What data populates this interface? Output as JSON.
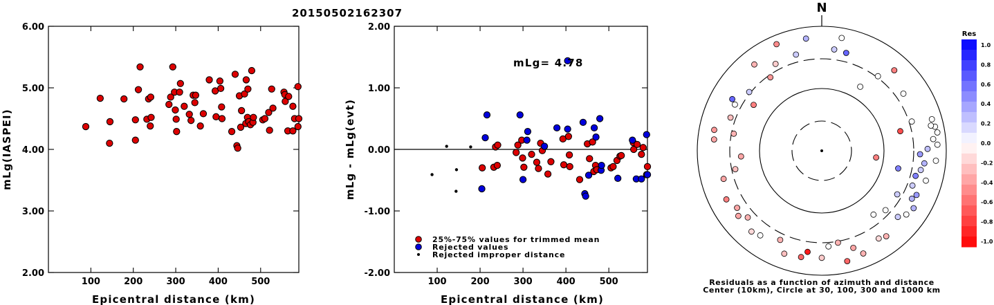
{
  "title": "20150502162307",
  "chart_data": [
    {
      "type": "scatter",
      "xlabel": "Epicentral distance (km)",
      "ylabel": "mLg(IASPEI)",
      "xlim": [
        0,
        590
      ],
      "ylim": [
        2.0,
        6.0
      ],
      "xticks": [
        100,
        200,
        300,
        400,
        500
      ],
      "yticks": [
        "2.00",
        "3.00",
        "4.00",
        "5.00",
        "6.00"
      ],
      "series": [
        {
          "marker": "red-circle",
          "color": "#dd0000",
          "points": [
            [
              88,
              4.37
            ],
            [
              122,
              4.83
            ],
            [
              145,
              4.45
            ],
            [
              144,
              4.1
            ],
            [
              178,
              4.82
            ],
            [
              205,
              4.48
            ],
            [
              205,
              4.15
            ],
            [
              212,
              4.97
            ],
            [
              216,
              5.34
            ],
            [
              232,
              4.49
            ],
            [
              236,
              4.82
            ],
            [
              240,
              4.38
            ],
            [
              241,
              4.85
            ],
            [
              242,
              4.52
            ],
            [
              284,
              4.73
            ],
            [
              288,
              4.85
            ],
            [
              293,
              5.34
            ],
            [
              297,
              4.93
            ],
            [
              299,
              4.64
            ],
            [
              301,
              4.49
            ],
            [
              302,
              4.29
            ],
            [
              309,
              4.93
            ],
            [
              311,
              5.07
            ],
            [
              320,
              4.7
            ],
            [
              332,
              4.57
            ],
            [
              336,
              4.47
            ],
            [
              341,
              4.88
            ],
            [
              345,
              4.76
            ],
            [
              347,
              4.88
            ],
            [
              358,
              4.38
            ],
            [
              365,
              4.58
            ],
            [
              379,
              5.13
            ],
            [
              393,
              4.95
            ],
            [
              395,
              4.53
            ],
            [
              404,
              5.11
            ],
            [
              406,
              4.99
            ],
            [
              408,
              4.69
            ],
            [
              409,
              4.5
            ],
            [
              432,
              4.29
            ],
            [
              440,
              5.22
            ],
            [
              444,
              4.06
            ],
            [
              446,
              4.02
            ],
            [
              450,
              4.87
            ],
            [
              453,
              4.36
            ],
            [
              455,
              4.63
            ],
            [
              462,
              4.9
            ],
            [
              465,
              4.42
            ],
            [
              466,
              5.13
            ],
            [
              469,
              4.52
            ],
            [
              470,
              4.98
            ],
            [
              472,
              4.45
            ],
            [
              476,
              4.4
            ],
            [
              479,
              5.28
            ],
            [
              482,
              4.44
            ],
            [
              483,
              4.52
            ],
            [
              505,
              4.48
            ],
            [
              510,
              4.5
            ],
            [
              519,
              4.6
            ],
            [
              521,
              4.31
            ],
            [
              526,
              4.98
            ],
            [
              529,
              4.67
            ],
            [
              555,
              4.93
            ],
            [
              557,
              4.89
            ],
            [
              558,
              4.78
            ],
            [
              564,
              4.3
            ],
            [
              566,
              4.86
            ],
            [
              576,
              4.3
            ],
            [
              576,
              4.7
            ],
            [
              580,
              4.5
            ],
            [
              588,
              5.02
            ],
            [
              588,
              4.37
            ],
            [
              590,
              4.5
            ]
          ]
        }
      ]
    },
    {
      "type": "scatter",
      "xlabel": "Epicentral distance (km)",
      "ylabel": "mLg - mLg(evt)",
      "xlim": [
        0,
        590
      ],
      "ylim": [
        -2.0,
        2.0
      ],
      "xticks": [
        100,
        200,
        300,
        400,
        500
      ],
      "yticks": [
        "-2.00",
        "-1.00",
        "0.00",
        "1.00",
        "2.00"
      ],
      "annotation": "mLg= 4.78",
      "reference_line": 0.0,
      "legend": [
        {
          "marker": "red-circle",
          "label": "25%-75% values for trimmed mean"
        },
        {
          "marker": "blue-circle",
          "label": "Rejected values"
        },
        {
          "marker": "black-dot",
          "label": "Rejected improper distance"
        }
      ],
      "series": [
        {
          "name": "25%-75% values for trimmed mean",
          "marker": "red-circle",
          "color": "#dd0000",
          "points": [
            [
              205,
              -0.3
            ],
            [
              232,
              -0.29
            ],
            [
              236,
              0.04
            ],
            [
              240,
              -0.26
            ],
            [
              241,
              0.07
            ],
            [
              284,
              -0.05
            ],
            [
              288,
              0.07
            ],
            [
              297,
              0.15
            ],
            [
              299,
              -0.14
            ],
            [
              302,
              -0.29
            ],
            [
              320,
              -0.08
            ],
            [
              332,
              -0.21
            ],
            [
              336,
              -0.31
            ],
            [
              341,
              0.1
            ],
            [
              345,
              -0.02
            ],
            [
              358,
              -0.4
            ],
            [
              365,
              -0.2
            ],
            [
              393,
              0.17
            ],
            [
              395,
              -0.25
            ],
            [
              406,
              0.21
            ],
            [
              408,
              -0.09
            ],
            [
              409,
              -0.28
            ],
            [
              432,
              -0.49
            ],
            [
              450,
              0.09
            ],
            [
              455,
              -0.15
            ],
            [
              462,
              0.12
            ],
            [
              465,
              -0.36
            ],
            [
              469,
              -0.26
            ],
            [
              472,
              -0.33
            ],
            [
              505,
              -0.3
            ],
            [
              510,
              -0.28
            ],
            [
              519,
              -0.18
            ],
            [
              526,
              -0.11
            ],
            [
              529,
              -0.1
            ],
            [
              557,
              0.11
            ],
            [
              558,
              0.0
            ],
            [
              566,
              0.08
            ],
            [
              576,
              -0.08
            ],
            [
              580,
              0.03
            ],
            [
              588,
              -0.41
            ],
            [
              590,
              -0.28
            ]
          ]
        },
        {
          "name": "Rejected values",
          "marker": "blue-circle",
          "color": "#0000dd",
          "points": [
            [
              204,
              -0.64
            ],
            [
              212,
              0.19
            ],
            [
              216,
              0.56
            ],
            [
              293,
              0.56
            ],
            [
              300,
              -0.49
            ],
            [
              309,
              0.15
            ],
            [
              311,
              0.29
            ],
            [
              350,
              0.05
            ],
            [
              379,
              0.35
            ],
            [
              404,
              1.44
            ],
            [
              404,
              0.33
            ],
            [
              440,
              0.44
            ],
            [
              444,
              -0.72
            ],
            [
              446,
              -0.76
            ],
            [
              453,
              -0.42
            ],
            [
              466,
              0.35
            ],
            [
              470,
              0.2
            ],
            [
              479,
              0.5
            ],
            [
              482,
              -0.34
            ],
            [
              483,
              -0.26
            ],
            [
              521,
              -0.47
            ],
            [
              555,
              0.15
            ],
            [
              564,
              -0.48
            ],
            [
              576,
              -0.48
            ],
            [
              588,
              0.24
            ],
            [
              590,
              -0.41
            ]
          ]
        },
        {
          "name": "Rejected improper distance",
          "marker": "black-dot",
          "color": "#000000",
          "points": [
            [
              88,
              -0.41
            ],
            [
              122,
              0.05
            ],
            [
              144,
              -0.68
            ],
            [
              145,
              -0.33
            ],
            [
              178,
              0.04
            ]
          ]
        }
      ]
    },
    {
      "type": "polar-scatter",
      "north_label": "N",
      "caption_line1": "Residuals as a function of azimuth and distance",
      "caption_line2": "Center (10km), Circle at 30, 100, 300 and 1000 km",
      "rings_km": [
        30,
        100,
        300,
        1000
      ],
      "colorbar": {
        "title": "Res",
        "ticks": [
          "1.0",
          "0.8",
          "0.6",
          "0.4",
          "0.2",
          "0.0",
          "-0.2",
          "-0.4",
          "-0.6",
          "-0.8",
          "-1.0"
        ],
        "positive_color": "#0000ff",
        "negative_color": "#ff0000"
      },
      "stations": [
        {
          "az": 352,
          "r": 0.91,
          "res": 0.3
        },
        {
          "az": 337,
          "r": 0.93,
          "res": -0.45
        },
        {
          "az": 345,
          "r": 0.8,
          "res": 0.2
        },
        {
          "az": 332,
          "r": 0.79,
          "res": -0.2
        },
        {
          "az": 325,
          "r": 0.72,
          "res": -0.4
        },
        {
          "az": 322,
          "r": 0.88,
          "res": -0.3
        },
        {
          "az": 7,
          "r": 0.82,
          "res": 0.2
        },
        {
          "az": 14,
          "r": 0.81,
          "res": 0.6
        },
        {
          "az": 10,
          "r": 0.92,
          "res": 0.0
        },
        {
          "az": 31,
          "r": 0.6,
          "res": 0.0
        },
        {
          "az": 37,
          "r": 0.75,
          "res": 0.0
        },
        {
          "az": 42,
          "r": 0.87,
          "res": -0.5
        },
        {
          "az": 300,
          "r": 0.83,
          "res": 0.6
        },
        {
          "az": 298,
          "r": 0.79,
          "res": 0.0
        },
        {
          "az": 304,
          "r": 0.66,
          "res": -0.5
        },
        {
          "az": 290,
          "r": 0.78,
          "res": -0.25
        },
        {
          "az": 309,
          "r": 0.75,
          "res": 0.2
        },
        {
          "az": 281,
          "r": 0.88,
          "res": -0.4
        },
        {
          "az": 276,
          "r": 0.87,
          "res": -0.35
        },
        {
          "az": 281,
          "r": 0.72,
          "res": -0.3
        },
        {
          "az": 266,
          "r": 0.65,
          "res": -0.35
        },
        {
          "az": 258,
          "r": 0.71,
          "res": -0.25
        },
        {
          "az": 254,
          "r": 0.82,
          "res": -0.35
        },
        {
          "az": 243,
          "r": 0.86,
          "res": -0.5
        },
        {
          "az": 236,
          "r": 0.82,
          "res": -0.35
        },
        {
          "az": 232,
          "r": 0.85,
          "res": -0.35
        },
        {
          "az": 228,
          "r": 0.8,
          "res": -0.3
        },
        {
          "az": 221,
          "r": 0.86,
          "res": -0.15
        },
        {
          "az": 216,
          "r": 0.84,
          "res": 0.0
        },
        {
          "az": 205,
          "r": 0.79,
          "res": -0.3
        },
        {
          "az": 200,
          "r": 0.88,
          "res": -0.25
        },
        {
          "az": 191,
          "r": 0.87,
          "res": -0.6
        },
        {
          "az": 188,
          "r": 0.82,
          "res": -0.9
        },
        {
          "az": 180,
          "r": 0.86,
          "res": -0.2
        },
        {
          "az": 176,
          "r": 0.77,
          "res": 0.0
        },
        {
          "az": 170,
          "r": 0.75,
          "res": -0.3
        },
        {
          "az": 167,
          "r": 0.91,
          "res": -0.6
        },
        {
          "az": 162,
          "r": 0.82,
          "res": -0.35
        },
        {
          "az": 158,
          "r": 0.89,
          "res": -0.3
        },
        {
          "az": 147,
          "r": 0.84,
          "res": -0.15
        },
        {
          "az": 143,
          "r": 0.86,
          "res": -0.3
        },
        {
          "az": 141,
          "r": 0.66,
          "res": 0.0
        },
        {
          "az": 133,
          "r": 0.7,
          "res": 0.0
        },
        {
          "az": 131,
          "r": 0.81,
          "res": 0.2
        },
        {
          "az": 127,
          "r": 0.85,
          "res": 0.0
        },
        {
          "az": 122,
          "r": 0.87,
          "res": 0.3
        },
        {
          "az": 120,
          "r": 0.7,
          "res": 0.2
        },
        {
          "az": 118,
          "r": 0.82,
          "res": 0.3
        },
        {
          "az": 115,
          "r": 0.84,
          "res": 0.4
        },
        {
          "az": 111,
          "r": 0.78,
          "res": 0.2
        },
        {
          "az": 106,
          "r": 0.87,
          "res": 0.0
        },
        {
          "az": 105,
          "r": 0.78,
          "res": 0.5
        },
        {
          "az": 103,
          "r": 0.63,
          "res": 0.5
        },
        {
          "az": 101,
          "r": 0.81,
          "res": 0.2
        },
        {
          "az": 97,
          "r": 0.83,
          "res": 0.3
        },
        {
          "az": 95,
          "r": 0.92,
          "res": 0.0
        },
        {
          "az": 92,
          "r": 0.79,
          "res": 0.4
        },
        {
          "az": 89,
          "r": 0.85,
          "res": 0.25
        },
        {
          "az": 87,
          "r": 0.93,
          "res": 0.0
        },
        {
          "az": 84,
          "r": 0.9,
          "res": 0.0
        },
        {
          "az": 81,
          "r": 0.94,
          "res": 0.0
        },
        {
          "az": 78,
          "r": 0.93,
          "res": 0.0
        },
        {
          "az": 77,
          "r": 0.9,
          "res": 0.0
        },
        {
          "az": 74,
          "r": 0.92,
          "res": 0.0
        },
        {
          "az": 72,
          "r": 0.76,
          "res": 0.0
        },
        {
          "az": 76,
          "r": 0.65,
          "res": -0.7
        },
        {
          "az": 97,
          "r": 0.44,
          "res": -0.5
        },
        {
          "az": 55,
          "r": 0.8,
          "res": 0.0
        }
      ]
    }
  ]
}
